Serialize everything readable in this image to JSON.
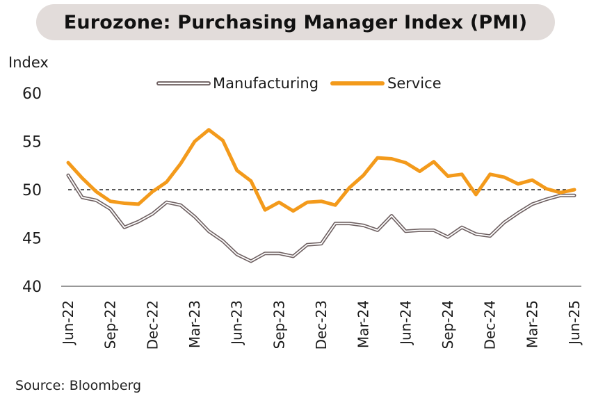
{
  "chart_data": {
    "type": "line",
    "title": "Eurozone: Purchasing Manager Index (PMI)",
    "ylabel": "Index",
    "source": "Source: Bloomberg",
    "ylim": [
      40,
      60
    ],
    "yticks": [
      40,
      45,
      50,
      55,
      60
    ],
    "reference_line": 50,
    "legend": "top",
    "x": [
      "Jun-22",
      "Jul-22",
      "Aug-22",
      "Sep-22",
      "Oct-22",
      "Nov-22",
      "Dec-22",
      "Jan-23",
      "Feb-23",
      "Mar-23",
      "Apr-23",
      "May-23",
      "Jun-23",
      "Jul-23",
      "Aug-23",
      "Sep-23",
      "Oct-23",
      "Nov-23",
      "Dec-23",
      "Jan-24",
      "Feb-24",
      "Mar-24",
      "Apr-24",
      "May-24",
      "Jun-24",
      "Jul-24",
      "Aug-24",
      "Sep-24",
      "Oct-24",
      "Nov-24",
      "Dec-24",
      "Jan-25",
      "Feb-25",
      "Mar-25",
      "Apr-25",
      "May-25",
      "Jun-25"
    ],
    "xtick_labels": [
      "Jun-22",
      "Sep-22",
      "Dec-22",
      "Mar-23",
      "Jun-23",
      "Sep-23",
      "Dec-23",
      "Mar-24",
      "Jun-24",
      "Sep-24",
      "Dec-24",
      "Mar-25",
      "Jun-25"
    ],
    "series": [
      {
        "name": "Manufacturing",
        "color": "#6e6061",
        "values": [
          51.5,
          49.2,
          48.9,
          48.0,
          46.1,
          46.7,
          47.5,
          48.7,
          48.4,
          47.2,
          45.7,
          44.7,
          43.3,
          42.6,
          43.4,
          43.4,
          43.1,
          44.3,
          44.4,
          46.5,
          46.5,
          46.3,
          45.8,
          47.3,
          45.7,
          45.8,
          45.8,
          45.1,
          46.1,
          45.4,
          45.2,
          46.6,
          47.6,
          48.5,
          49.0,
          49.4,
          49.4
        ]
      },
      {
        "name": "Service",
        "color": "#f39a1b",
        "values": [
          52.8,
          51.2,
          49.8,
          48.8,
          48.6,
          48.5,
          49.8,
          50.8,
          52.7,
          55.0,
          56.2,
          55.1,
          52.0,
          50.9,
          47.9,
          48.7,
          47.8,
          48.7,
          48.8,
          48.4,
          50.2,
          51.5,
          53.3,
          53.2,
          52.8,
          51.9,
          52.9,
          51.4,
          51.6,
          49.5,
          51.6,
          51.3,
          50.6,
          51.0,
          50.1,
          49.7,
          50.0
        ]
      }
    ]
  }
}
